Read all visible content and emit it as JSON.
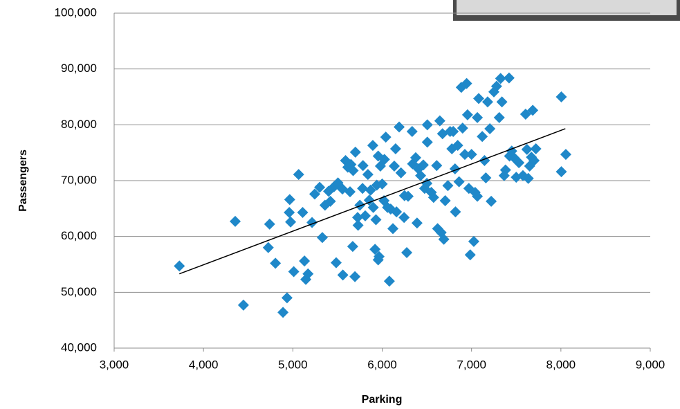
{
  "chart_data": {
    "type": "scatter",
    "x_label": "Parking",
    "y_label": "Passengers",
    "color": "#1f88c9",
    "grid": true,
    "xlim": [
      3000,
      9000
    ],
    "ylim": [
      40000,
      100000
    ],
    "xticks": [
      {
        "value": 3000,
        "label": "3,000"
      },
      {
        "value": 4000,
        "label": "4,000"
      },
      {
        "value": 5000,
        "label": "5,000"
      },
      {
        "value": 6000,
        "label": "6,000"
      },
      {
        "value": 7000,
        "label": "7,000"
      },
      {
        "value": 8000,
        "label": "8,000"
      },
      {
        "value": 9000,
        "label": "9,000"
      }
    ],
    "yticks": [
      {
        "value": 40000,
        "label": "40,000"
      },
      {
        "value": 50000,
        "label": "50,000"
      },
      {
        "value": 60000,
        "label": "60,000"
      },
      {
        "value": 70000,
        "label": "70,000"
      },
      {
        "value": 80000,
        "label": "80,000"
      },
      {
        "value": 90000,
        "label": "90,000"
      },
      {
        "value": 100000,
        "label": "100,000"
      }
    ],
    "x": [
      3730,
      4355,
      4447,
      4740,
      4725,
      4805,
      4890,
      4935,
      4960,
      4965,
      4975,
      5010,
      5065,
      5110,
      5130,
      5145,
      5170,
      5215,
      5245,
      5300,
      5330,
      5360,
      5400,
      5420,
      5460,
      5485,
      5505,
      5555,
      5560,
      5590,
      5615,
      5640,
      5650,
      5670,
      5675,
      5695,
      5700,
      5725,
      5730,
      5750,
      5780,
      5785,
      5810,
      5840,
      5855,
      5870,
      5895,
      5900,
      5920,
      5930,
      5940,
      5955,
      5955,
      5965,
      5980,
      6000,
      6020,
      6025,
      6040,
      6060,
      6080,
      6095,
      6120,
      6135,
      6150,
      6160,
      6190,
      6210,
      6245,
      6250,
      6275,
      6290,
      6335,
      6340,
      6375,
      6390,
      6405,
      6430,
      6460,
      6475,
      6500,
      6505,
      6505,
      6550,
      6575,
      6610,
      6620,
      6645,
      6660,
      6675,
      6690,
      6705,
      6735,
      6760,
      6780,
      6795,
      6815,
      6820,
      6845,
      6860,
      6885,
      6900,
      6925,
      6945,
      6955,
      6970,
      6985,
      7000,
      7025,
      7040,
      7065,
      7065,
      7080,
      7120,
      7145,
      7160,
      7180,
      7205,
      7220,
      7250,
      7280,
      7310,
      7325,
      7340,
      7365,
      7380,
      7420,
      7425,
      7450,
      7475,
      7500,
      7530,
      7575,
      7605,
      7620,
      7635,
      7650,
      7670,
      7685,
      7700,
      7720,
      8005,
      8055,
      8005
    ],
    "y": [
      54700,
      62700,
      47700,
      62200,
      58000,
      55200,
      46400,
      49000,
      64300,
      66600,
      62600,
      53700,
      71100,
      64300,
      55600,
      52300,
      53300,
      62500,
      67600,
      68800,
      59800,
      65600,
      68100,
      66300,
      68900,
      55300,
      69600,
      68500,
      53100,
      73600,
      72400,
      68000,
      72900,
      58200,
      71800,
      52800,
      75100,
      63400,
      62000,
      65600,
      68600,
      72700,
      63700,
      71100,
      66500,
      68300,
      76300,
      65200,
      57700,
      63000,
      69200,
      55800,
      74400,
      56400,
      72600,
      69400,
      66400,
      73800,
      77800,
      65200,
      52000,
      64900,
      61400,
      72600,
      75700,
      64400,
      79600,
      71400,
      63400,
      67300,
      57100,
      67200,
      78800,
      73000,
      74100,
      62400,
      72100,
      70900,
      72800,
      68600,
      69500,
      80000,
      76900,
      67900,
      67000,
      72700,
      61400,
      80700,
      60700,
      78400,
      59500,
      66400,
      69100,
      78800,
      75700,
      78800,
      72100,
      64400,
      76300,
      69800,
      86700,
      79400,
      74700,
      87400,
      81800,
      68600,
      56700,
      74700,
      59100,
      67900,
      67200,
      81300,
      84700,
      77900,
      73600,
      70500,
      84100,
      79300,
      66300,
      85900,
      86900,
      81300,
      88300,
      84100,
      70900,
      71900,
      88400,
      74400,
      75300,
      74100,
      70600,
      73200,
      70900,
      81900,
      75600,
      70400,
      72600,
      74200,
      82600,
      73600,
      75700,
      85000,
      74700,
      71600
    ],
    "trendline": {
      "color": "#000000",
      "x": [
        3730,
        8050
      ],
      "y": [
        53300,
        79300
      ]
    }
  }
}
